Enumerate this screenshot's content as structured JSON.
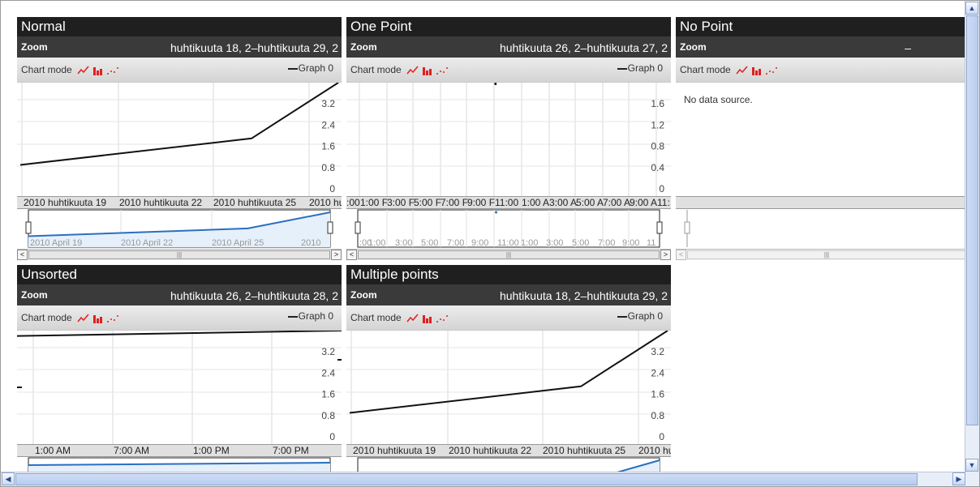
{
  "colors": {
    "title_bg": "#1f1f1f",
    "zoom_bg": "#3a3a3a",
    "line": "#111111",
    "nav_line": "#2a6fc0",
    "nav_fill": "#e6f0fb",
    "mode_icon_red": "#e02020"
  },
  "common": {
    "zoom_label": "Zoom",
    "chart_mode_label": "Chart mode",
    "graph_legend": "Graph 0"
  },
  "panels": [
    {
      "title": "Normal",
      "zoom_range": "huhtikuuta 18, 2–huhtikuuta 29, 2",
      "y_ticks": [
        "3.2",
        "2.4",
        "1.6",
        "0.8",
        "0"
      ],
      "x_labels": [
        "2010 huhtikuuta 19",
        "2010 huhtikuuta 22",
        "2010 huhtikuuta 25",
        "2010 hu"
      ],
      "nav_labels": [
        "2010 April 19",
        "2010 April 22",
        "2010 April 25",
        "2010"
      ]
    },
    {
      "title": "One Point",
      "zoom_range": "huhtikuuta 26, 2–huhtikuuta 27, 2",
      "y_ticks": [
        "1.6",
        "1.2",
        "0.8",
        "0.4",
        "0"
      ],
      "x_labels": [
        ":00",
        "1:00 F",
        "3:00 F",
        "5:00 F",
        "7:00 F",
        "9:00 F",
        "11:00",
        "1:00 A",
        "3:00 A",
        "5:00 A",
        "7:00 A",
        "9:00 A",
        "11:"
      ],
      "nav_labels": [
        ":00",
        "1:00",
        "3:00",
        "5:00",
        "7:00",
        "9:00",
        "11:00",
        "1:00",
        "3:00",
        "5:00",
        "7:00",
        "9:00",
        "11"
      ]
    },
    {
      "title": "No Point",
      "zoom_range": "–",
      "no_data": "No data source."
    },
    {
      "title": "Unsorted",
      "zoom_range": "huhtikuuta 26, 2–huhtikuuta 28, 2",
      "y_ticks": [
        "3.2",
        "2.4",
        "1.6",
        "0.8",
        "0"
      ],
      "x_labels": [
        "1:00 AM",
        "7:00 AM",
        "1:00 PM",
        "7:00 PM"
      ]
    },
    {
      "title": "Multiple points",
      "zoom_range": "huhtikuuta 18, 2–huhtikuuta 29, 2",
      "y_ticks": [
        "3.2",
        "2.4",
        "1.6",
        "0.8",
        "0"
      ],
      "x_labels": [
        "2010 huhtikuuta 19",
        "2010 huhtikuuta 22",
        "2010 huhtikuuta 25",
        "2010 hu"
      ]
    }
  ],
  "chart_data": [
    {
      "type": "line",
      "title": "Normal",
      "series": [
        {
          "name": "Graph 0",
          "x": [
            "2010-04-18",
            "2010-04-26",
            "2010-04-29"
          ],
          "y": [
            0.9,
            1.9,
            4.0
          ]
        }
      ],
      "ylim": [
        0,
        4.0
      ]
    },
    {
      "type": "scatter",
      "title": "One Point",
      "series": [
        {
          "name": "Graph 0",
          "x": [
            "2010-04-26 11:00"
          ],
          "y": [
            2.0
          ]
        }
      ],
      "ylim": [
        0,
        2.0
      ]
    },
    {
      "type": "line",
      "title": "No Point",
      "series": []
    },
    {
      "type": "line",
      "title": "Unsorted",
      "series": [
        {
          "name": "Graph 0",
          "x": [
            "2010-04-26 00:00",
            "2010-04-27 00:00"
          ],
          "y": [
            3.8,
            4.0
          ]
        }
      ],
      "ylim": [
        0,
        4.0
      ]
    },
    {
      "type": "line",
      "title": "Multiple points",
      "series": [
        {
          "name": "Graph 0",
          "x": [
            "2010-04-18",
            "2010-04-26",
            "2010-04-29"
          ],
          "y": [
            0.9,
            1.9,
            4.0
          ]
        }
      ],
      "ylim": [
        0,
        4.0
      ]
    }
  ]
}
